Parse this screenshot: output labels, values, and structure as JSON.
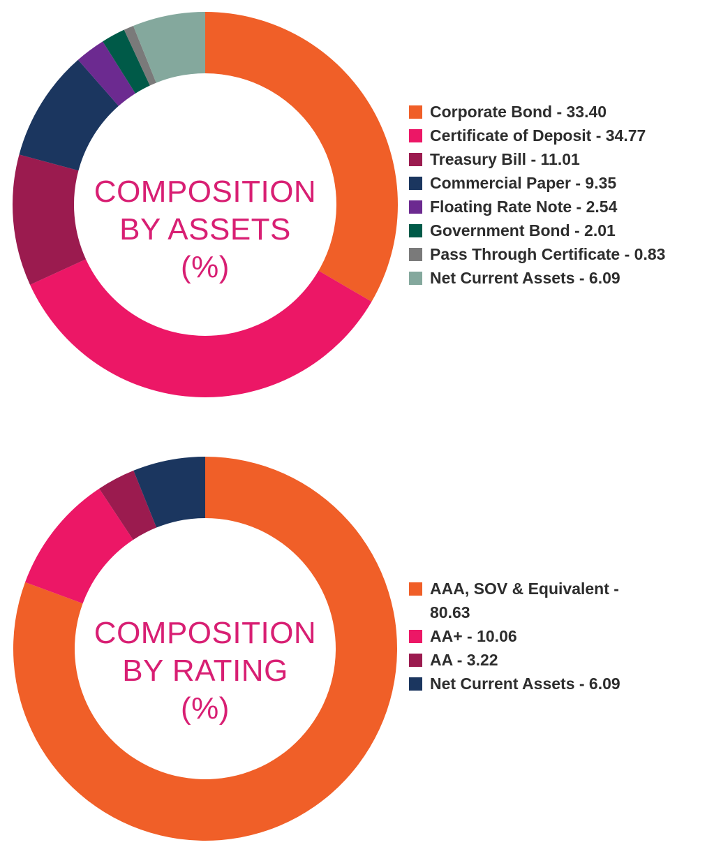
{
  "chart_data": [
    {
      "type": "donut",
      "title_lines": [
        "COMPOSITION",
        "BY ASSETS",
        "(%)"
      ],
      "categories": [
        "Corporate Bond",
        "Certificate of Deposit",
        "Treasury Bill",
        "Commercial Paper",
        "Floating Rate Note",
        "Government Bond",
        "Pass Through Certificate",
        "Net Current Assets"
      ],
      "values": [
        33.4,
        34.77,
        11.01,
        9.35,
        2.54,
        2.01,
        0.83,
        6.09
      ],
      "colors": [
        "#f05f28",
        "#ec1766",
        "#9b1b4f",
        "#1b365f",
        "#6c2a90",
        "#005a48",
        "#7a7a7a",
        "#84a89d"
      ],
      "legend_labels": [
        "Corporate Bond - 33.40",
        "Certificate of Deposit - 34.77",
        "Treasury Bill - 11.01",
        "Commercial Paper - 9.35",
        "Floating Rate Note - 2.54",
        "Government Bond - 2.01",
        "Pass Through Certificate - 0.83",
        "Net Current Assets - 6.09"
      ],
      "legend_placement": "right"
    },
    {
      "type": "donut",
      "title_lines": [
        "COMPOSITION",
        "BY RATING",
        "(%)"
      ],
      "categories": [
        "AAA, SOV & Equivalent",
        "AA+",
        "AA",
        "Net Current Assets"
      ],
      "values": [
        80.63,
        10.06,
        3.22,
        6.09
      ],
      "colors": [
        "#f05f28",
        "#ec1766",
        "#9b1b4f",
        "#1b365f"
      ],
      "legend_labels": [
        "AAA, SOV & Equivalent - 80.63",
        "AA+ - 10.06",
        "AA - 3.22",
        "Net Current Assets - 6.09"
      ],
      "legend_placement": "right"
    }
  ]
}
